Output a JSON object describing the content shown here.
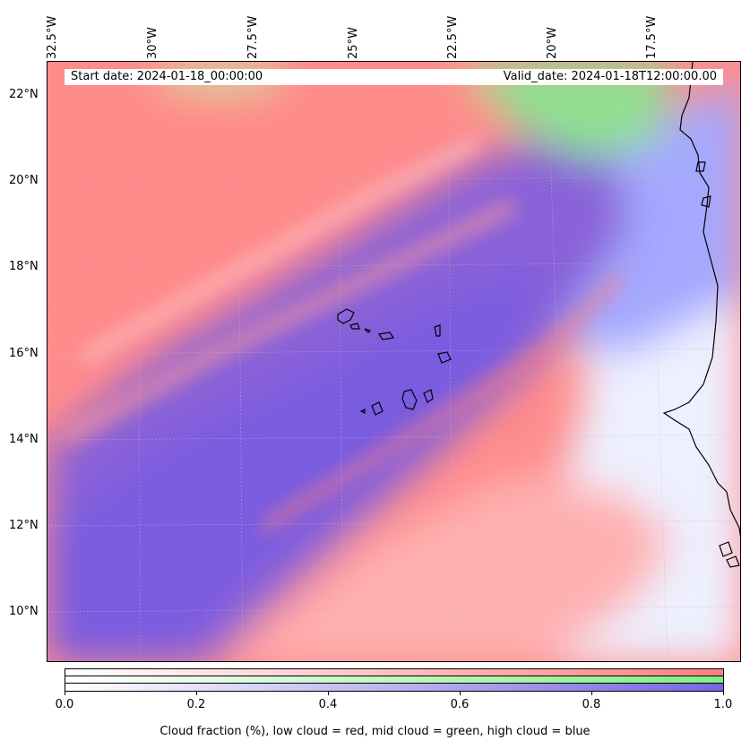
{
  "map": {
    "lon_labels": [
      "32.5°W",
      "30°W",
      "27.5°W",
      "25°W",
      "22.5°W",
      "20°W",
      "17.5°W"
    ],
    "lat_labels": [
      "22°N",
      "20°N",
      "18°N",
      "16°N",
      "14°N",
      "12°N",
      "10°N"
    ],
    "start_date": "Start date: 2024-01-18_00:00:00",
    "valid_date": "Valid_date: 2024-01-18T12:00:00.00"
  },
  "colorbar": {
    "ticks": [
      "0.0",
      "0.2",
      "0.4",
      "0.6",
      "0.8",
      "1.0"
    ],
    "label": "Cloud fraction (%), low cloud = red, mid cloud = green, high cloud = blue",
    "colors": {
      "low": "#ff7f7f",
      "mid": "#80f080",
      "high": "#7766e0"
    }
  }
}
